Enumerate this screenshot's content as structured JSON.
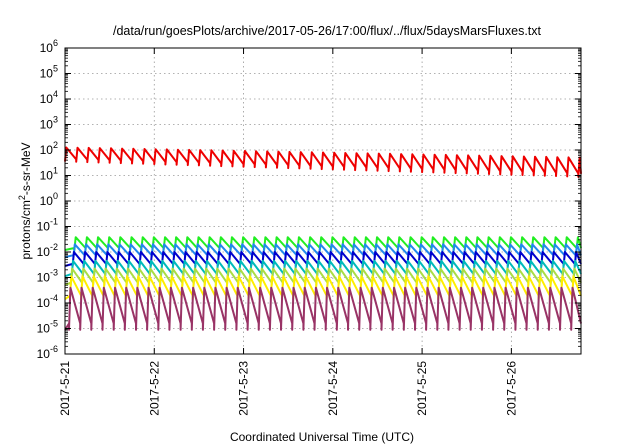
{
  "chart_data": {
    "type": "line",
    "title": "/data/run/goesPlots/archive/2017-05-26/17:00/flux/../flux/5daysMarsFluxes.txt",
    "xlabel": "Coordinated Universal Time (UTC)",
    "ylabel": "protons/cm2-s-sr-MeV",
    "ylabel_parts": {
      "pre": "protons/cm",
      "sup": "2",
      "post": "-s-sr-MeV"
    },
    "yscale": "log",
    "ylim_exp": [
      -6,
      6
    ],
    "y_ticks": [
      {
        "base": "10",
        "exp": "-6",
        "e": -6
      },
      {
        "base": "10",
        "exp": "-5",
        "e": -5
      },
      {
        "base": "10",
        "exp": "-4",
        "e": -4
      },
      {
        "base": "10",
        "exp": "-3",
        "e": -3
      },
      {
        "base": "10",
        "exp": "-2",
        "e": -2
      },
      {
        "base": "10",
        "exp": "-1",
        "e": -1
      },
      {
        "base": "10",
        "exp": "0",
        "e": 0
      },
      {
        "base": "10",
        "exp": "1",
        "e": 1
      },
      {
        "base": "10",
        "exp": "2",
        "e": 2
      },
      {
        "base": "10",
        "exp": "3",
        "e": 3
      },
      {
        "base": "10",
        "exp": "4",
        "e": 4
      },
      {
        "base": "10",
        "exp": "5",
        "e": 5
      },
      {
        "base": "10",
        "exp": "6",
        "e": 6
      }
    ],
    "x_range_days": [
      0,
      5.78
    ],
    "x_ticks": [
      {
        "label": "2017-5-21",
        "day": 0
      },
      {
        "label": "2017-5-22",
        "day": 1
      },
      {
        "label": "2017-5-23",
        "day": 2
      },
      {
        "label": "2017-5-24",
        "day": 3
      },
      {
        "label": "2017-5-25",
        "day": 4
      },
      {
        "label": "2017-5-26",
        "day": 5
      }
    ],
    "grid": true,
    "legend": "none",
    "series": [
      {
        "color": "#ee0000",
        "sawtooth": {
          "low_start": 1.55,
          "low_end": 0.95,
          "high_start": 2.1,
          "high_end": 1.7,
          "period": 0.125,
          "phase": 0.0
        }
      },
      {
        "color": "#22ee22",
        "sawtooth": {
          "low": -1.92,
          "high": -1.42,
          "period": 0.125,
          "phase": 0.02
        }
      },
      {
        "color": "#2288ee",
        "sawtooth": {
          "low": -2.2,
          "high": -1.7,
          "period": 0.125,
          "phase": 0.03
        }
      },
      {
        "color": "#0000cc",
        "sawtooth": {
          "low": -2.55,
          "high": -2.0,
          "period": 0.125,
          "phase": 0.04
        }
      },
      {
        "color": "#00bbbb",
        "sawtooth": {
          "low": -2.95,
          "high": -2.35,
          "period": 0.125,
          "phase": 0.05
        }
      },
      {
        "color": "#aadd44",
        "sawtooth": {
          "low": -3.3,
          "high": -2.65,
          "period": 0.125,
          "phase": 0.06
        }
      },
      {
        "color": "#ffee00",
        "sawtooth": {
          "low": -3.85,
          "high": -2.95,
          "period": 0.125,
          "phase": 0.07
        }
      },
      {
        "color": "#993366",
        "sawtooth": {
          "low": -5.05,
          "high": -3.4,
          "period": 0.125,
          "phase": 0.08
        }
      }
    ]
  }
}
